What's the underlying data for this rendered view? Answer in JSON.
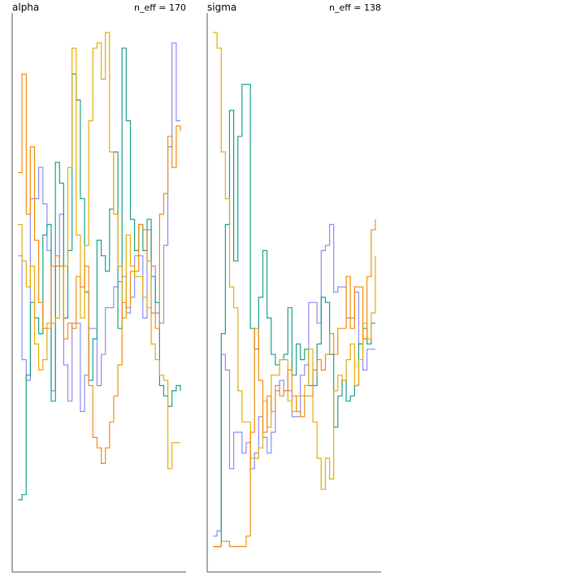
{
  "colors": {
    "chain_1": "#8b8bf5",
    "chain_2": "#1b9e8a",
    "chain_3": "#e6ab02",
    "chain_4": "#f28c0f"
  },
  "chart_data": [
    {
      "type": "line",
      "title": "alpha",
      "annotation": "n_eff = 170",
      "xlim": [
        1,
        40
      ],
      "ylim": [
        0,
        1
      ],
      "grid": false,
      "series": [
        {
          "color_key": "chain_1",
          "values": [
            0.57,
            0.37,
            0.33,
            0.68,
            0.68,
            0.74,
            0.67,
            0.58,
            0.31,
            0.55,
            0.65,
            0.36,
            0.29,
            0.44,
            0.44,
            0.27,
            0.34,
            0.43,
            0.43,
            0.32,
            0.38,
            0.47,
            0.47,
            0.51,
            0.52,
            0.53,
            0.46,
            0.49,
            0.57,
            0.57,
            0.45,
            0.62,
            0.55,
            0.46,
            0.44,
            0.59,
            0.78,
            0.98,
            0.83,
            0.83
          ]
        },
        {
          "color_key": "chain_2",
          "values": [
            0.1,
            0.11,
            0.34,
            0.48,
            0.45,
            0.42,
            0.61,
            0.63,
            0.29,
            0.75,
            0.71,
            0.45,
            0.58,
            0.92,
            0.87,
            0.68,
            0.5,
            0.33,
            0.41,
            0.6,
            0.57,
            0.54,
            0.66,
            0.77,
            0.43,
            0.97,
            0.83,
            0.64,
            0.58,
            0.63,
            0.58,
            0.64,
            0.53,
            0.48,
            0.32,
            0.3,
            0.28,
            0.31,
            0.32,
            0.31
          ]
        },
        {
          "color_key": "chain_3",
          "values": [
            0.63,
            0.56,
            0.51,
            0.55,
            0.4,
            0.35,
            0.37,
            0.44,
            0.44,
            0.45,
            0.55,
            0.55,
            0.74,
            0.97,
            0.61,
            0.45,
            0.59,
            0.83,
            0.97,
            0.98,
            0.91,
            1.0,
            0.77,
            0.65,
            0.55,
            0.45,
            0.61,
            0.55,
            0.53,
            0.53,
            0.49,
            0.47,
            0.4,
            0.37,
            0.34,
            0.33,
            0.16,
            0.21,
            0.21,
            0.21
          ]
        },
        {
          "color_key": "chain_4",
          "values": [
            0.73,
            0.92,
            0.65,
            0.78,
            0.6,
            0.48,
            0.43,
            0.43,
            0.55,
            0.57,
            0.55,
            0.41,
            0.44,
            0.43,
            0.53,
            0.51,
            0.55,
            0.32,
            0.22,
            0.2,
            0.17,
            0.2,
            0.25,
            0.3,
            0.36,
            0.48,
            0.47,
            0.54,
            0.54,
            0.63,
            0.62,
            0.56,
            0.46,
            0.43,
            0.65,
            0.69,
            0.8,
            0.74,
            0.82,
            0.81
          ]
        }
      ]
    },
    {
      "type": "line",
      "title": "sigma",
      "annotation": "n_eff = 138",
      "xlim": [
        1,
        40
      ],
      "ylim": [
        0,
        1
      ],
      "grid": false,
      "series": [
        {
          "color_key": "chain_1",
          "values": [
            0.03,
            0.04,
            0.38,
            0.35,
            0.16,
            0.23,
            0.23,
            0.19,
            0.21,
            0.16,
            0.19,
            0.26,
            0.22,
            0.19,
            0.23,
            0.31,
            0.33,
            0.31,
            0.31,
            0.26,
            0.26,
            0.34,
            0.36,
            0.48,
            0.48,
            0.44,
            0.58,
            0.59,
            0.63,
            0.5,
            0.51,
            0.51,
            0.45,
            0.45,
            0.5,
            0.4,
            0.35,
            0.39,
            0.39,
            0.39
          ]
        },
        {
          "color_key": "chain_2",
          "values": [
            0.01,
            0.01,
            0.42,
            0.63,
            0.85,
            0.56,
            0.8,
            0.9,
            0.9,
            0.43,
            0.39,
            0.49,
            0.58,
            0.45,
            0.38,
            0.36,
            0.37,
            0.38,
            0.47,
            0.34,
            0.4,
            0.37,
            0.39,
            0.32,
            0.32,
            0.4,
            0.49,
            0.48,
            0.38,
            0.24,
            0.3,
            0.33,
            0.29,
            0.3,
            0.32,
            0.4,
            0.43,
            0.4,
            0.44,
            0.44
          ]
        },
        {
          "color_key": "chain_3",
          "values": [
            1.0,
            0.97,
            0.77,
            0.68,
            0.51,
            0.47,
            0.31,
            0.25,
            0.25,
            0.18,
            0.18,
            0.2,
            0.29,
            0.24,
            0.34,
            0.34,
            0.37,
            0.37,
            0.29,
            0.27,
            0.3,
            0.3,
            0.32,
            0.39,
            0.25,
            0.18,
            0.12,
            0.18,
            0.14,
            0.31,
            0.34,
            0.33,
            0.37,
            0.4,
            0.32,
            0.37,
            0.44,
            0.41,
            0.46,
            0.57
          ]
        },
        {
          "color_key": "chain_4",
          "values": [
            0.01,
            0.01,
            0.02,
            0.02,
            0.01,
            0.01,
            0.01,
            0.01,
            0.03,
            0.23,
            0.43,
            0.33,
            0.23,
            0.3,
            0.27,
            0.32,
            0.3,
            0.31,
            0.35,
            0.3,
            0.27,
            0.26,
            0.3,
            0.3,
            0.35,
            0.37,
            0.35,
            0.38,
            0.42,
            0.38,
            0.43,
            0.43,
            0.53,
            0.43,
            0.51,
            0.51,
            0.41,
            0.53,
            0.62,
            0.64
          ]
        }
      ]
    }
  ]
}
